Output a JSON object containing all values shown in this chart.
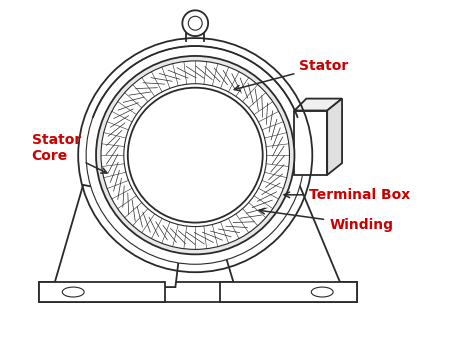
{
  "background_color": "#ffffff",
  "label_color": "#cc0000",
  "line_color": "#2a2a2a",
  "labels": {
    "stator": "Stator",
    "stator_core": "Stator\nCore",
    "terminal_box": "Terminal Box",
    "winding": "Winding"
  }
}
